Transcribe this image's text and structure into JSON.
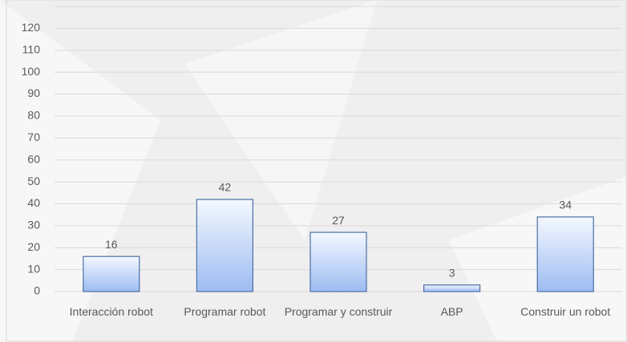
{
  "chart_data": {
    "type": "bar",
    "categories": [
      "Interacción robot",
      "Programar robot",
      "Programar y construir",
      "ABP",
      "Construir un robot"
    ],
    "values": [
      16,
      42,
      27,
      3,
      34
    ],
    "color": "#a9c4f5",
    "ylim": [
      0,
      130
    ],
    "yticks": [
      0,
      10,
      20,
      30,
      40,
      50,
      60,
      70,
      80,
      90,
      100,
      110,
      120
    ],
    "grid": true
  }
}
